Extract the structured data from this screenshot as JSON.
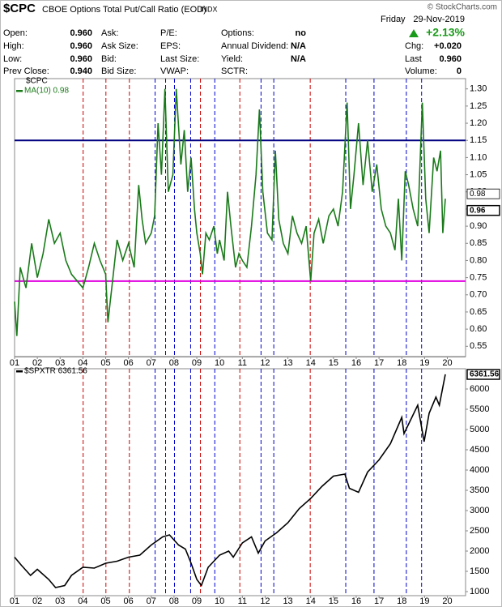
{
  "header": {
    "symbol": "$CPC",
    "name": "CBOE Options Total Put/Call Ratio (EOD)",
    "exchange": "INDX",
    "copyright": "© StockCharts.com",
    "day": "Friday",
    "date": "29-Nov-2019",
    "change_pct": "+2.13%",
    "columns": [
      [
        {
          "label": "Open:",
          "value": "0.960"
        },
        {
          "label": "High:",
          "value": "0.960"
        },
        {
          "label": "Low:",
          "value": "0.960"
        },
        {
          "label": "Prev Close:",
          "value": "0.940"
        }
      ],
      [
        {
          "label": "Ask:"
        },
        {
          "label": "Ask Size:"
        },
        {
          "label": "Bid:"
        },
        {
          "label": "Bid Size:"
        }
      ],
      [
        {
          "label": "P/E:"
        },
        {
          "label": "EPS:"
        },
        {
          "label": "Last Size:"
        },
        {
          "label": "VWAP:"
        }
      ],
      [
        {
          "label": "Options:",
          "value": "no"
        },
        {
          "label": "Annual Dividend:",
          "value": "N/A"
        },
        {
          "label": "Yield:",
          "value": "N/A"
        },
        {
          "label": "SCTR:"
        }
      ],
      [
        {
          "label": "Chg:",
          "value": "+0.020"
        },
        {
          "label": "Last",
          "value": "0.960"
        },
        {
          "label": "Volume:",
          "value": "0"
        }
      ]
    ]
  },
  "chart_data": [
    {
      "type": "line",
      "legend_title": "$CPC",
      "xlim": [
        2001,
        2020.8
      ],
      "ylim": [
        0.52,
        1.33
      ],
      "xticks": [
        {
          "value": 2001,
          "label": "01"
        },
        {
          "value": 2002,
          "label": "02"
        },
        {
          "value": 2003,
          "label": "03"
        },
        {
          "value": 2004,
          "label": "04"
        },
        {
          "value": 2005,
          "label": "05"
        },
        {
          "value": 2006,
          "label": "06"
        },
        {
          "value": 2007,
          "label": "07"
        },
        {
          "value": 2008,
          "label": "08"
        },
        {
          "value": 2009,
          "label": "09"
        },
        {
          "value": 2010,
          "label": "10"
        },
        {
          "value": 2011,
          "label": "11"
        },
        {
          "value": 2012,
          "label": "12"
        },
        {
          "value": 2013,
          "label": "13"
        },
        {
          "value": 2014,
          "label": "14"
        },
        {
          "value": 2015,
          "label": "15"
        },
        {
          "value": 2016,
          "label": "16"
        },
        {
          "value": 2017,
          "label": "17"
        },
        {
          "value": 2018,
          "label": "18"
        },
        {
          "value": 2019,
          "label": "19"
        },
        {
          "value": 2020,
          "label": "20"
        }
      ],
      "yticks": [
        0.55,
        {
          "value": 0.6,
          "label": "0.60"
        },
        0.65,
        {
          "value": 0.7,
          "label": "0.70"
        },
        0.75,
        {
          "value": 0.8,
          "label": "0.80"
        },
        0.85,
        {
          "value": 0.9,
          "label": "0.90"
        },
        0.95,
        {
          "value": 1.0,
          "label": "1.00"
        },
        1.05,
        {
          "value": 1.1,
          "label": "1.10"
        },
        1.15,
        {
          "value": 1.2,
          "label": "1.20"
        },
        1.25,
        {
          "value": 1.3,
          "label": "1.30"
        }
      ],
      "hlines": [
        {
          "value": 1.15,
          "color": "#000080"
        },
        {
          "value": 0.74,
          "color": "#e000e0"
        }
      ],
      "vlines": [
        {
          "color": "#cc0000",
          "x": [
            2004.01,
            2005.01,
            2006.04,
            2009.16,
            2010.89,
            2013.98
          ]
        },
        {
          "color": "#0000cc",
          "x": [
            2007.17,
            2007.63,
            2008.02,
            2008.73,
            2009.79,
            2011.82,
            2012.38,
            2015.54,
            2016.78,
            2018.2,
            2018.87
          ]
        }
      ],
      "last_labels": [
        0.98,
        0.96
      ],
      "series": [
        {
          "name": "MA(10) 0.98",
          "color": "#1a7a1a",
          "x": [
            2001.0,
            2001.1,
            2001.25,
            2001.5,
            2001.75,
            2002.0,
            2002.25,
            2002.5,
            2002.75,
            2003.0,
            2003.25,
            2003.5,
            2003.75,
            2004.0,
            2004.25,
            2004.5,
            2004.75,
            2005.0,
            2005.1,
            2005.3,
            2005.5,
            2005.75,
            2006.0,
            2006.25,
            2006.45,
            2006.6,
            2006.75,
            2007.0,
            2007.15,
            2007.3,
            2007.45,
            2007.6,
            2007.75,
            2007.95,
            2008.1,
            2008.3,
            2008.45,
            2008.6,
            2008.75,
            2008.9,
            2009.0,
            2009.15,
            2009.25,
            2009.4,
            2009.55,
            2009.75,
            2009.9,
            2010.0,
            2010.2,
            2010.35,
            2010.5,
            2010.7,
            2010.85,
            2011.0,
            2011.2,
            2011.4,
            2011.6,
            2011.75,
            2011.9,
            2012.1,
            2012.3,
            2012.45,
            2012.6,
            2012.8,
            2013.0,
            2013.2,
            2013.4,
            2013.6,
            2013.8,
            2014.0,
            2014.15,
            2014.35,
            2014.55,
            2014.8,
            2015.0,
            2015.2,
            2015.4,
            2015.6,
            2015.75,
            2015.9,
            2016.1,
            2016.3,
            2016.5,
            2016.7,
            2016.9,
            2017.1,
            2017.3,
            2017.5,
            2017.7,
            2017.85,
            2018.0,
            2018.15,
            2018.3,
            2018.5,
            2018.7,
            2018.9,
            2019.05,
            2019.2,
            2019.4,
            2019.55,
            2019.7,
            2019.8,
            2019.91
          ],
          "values": [
            0.68,
            0.58,
            0.78,
            0.72,
            0.85,
            0.75,
            0.82,
            0.92,
            0.85,
            0.88,
            0.8,
            0.76,
            0.74,
            0.72,
            0.78,
            0.85,
            0.8,
            0.76,
            0.62,
            0.74,
            0.86,
            0.8,
            0.85,
            0.78,
            1.02,
            0.92,
            0.85,
            0.88,
            0.93,
            1.2,
            1.05,
            1.3,
            1.0,
            1.05,
            1.3,
            1.08,
            1.18,
            1.0,
            1.1,
            0.95,
            0.88,
            0.82,
            0.76,
            0.88,
            0.86,
            0.9,
            0.82,
            0.86,
            0.8,
            1.0,
            0.9,
            0.78,
            0.82,
            0.8,
            0.78,
            0.9,
            1.05,
            1.24,
            1.0,
            0.88,
            0.86,
            1.12,
            0.92,
            0.85,
            0.82,
            0.93,
            0.88,
            0.85,
            0.9,
            0.74,
            0.88,
            0.92,
            0.85,
            0.93,
            0.95,
            0.9,
            1.0,
            1.26,
            0.95,
            1.05,
            1.2,
            1.02,
            1.15,
            1.0,
            1.08,
            0.95,
            0.9,
            0.88,
            0.83,
            0.98,
            0.8,
            1.06,
            1.02,
            0.95,
            0.9,
            1.26,
            0.98,
            0.88,
            1.1,
            1.06,
            1.12,
            0.88,
            0.98
          ]
        }
      ]
    },
    {
      "type": "line",
      "xlim": [
        2001,
        2020.8
      ],
      "ylim": [
        900,
        6500
      ],
      "xticks": [
        {
          "value": 2001,
          "label": "01"
        },
        {
          "value": 2002,
          "label": "02"
        },
        {
          "value": 2003,
          "label": "03"
        },
        {
          "value": 2004,
          "label": "04"
        },
        {
          "value": 2005,
          "label": "05"
        },
        {
          "value": 2006,
          "label": "06"
        },
        {
          "value": 2007,
          "label": "07"
        },
        {
          "value": 2008,
          "label": "08"
        },
        {
          "value": 2009,
          "label": "09"
        },
        {
          "value": 2010,
          "label": "10"
        },
        {
          "value": 2011,
          "label": "11"
        },
        {
          "value": 2012,
          "label": "12"
        },
        {
          "value": 2013,
          "label": "13"
        },
        {
          "value": 2014,
          "label": "14"
        },
        {
          "value": 2015,
          "label": "15"
        },
        {
          "value": 2016,
          "label": "16"
        },
        {
          "value": 2017,
          "label": "17"
        },
        {
          "value": 2018,
          "label": "18"
        },
        {
          "value": 2019,
          "label": "19"
        },
        {
          "value": 2020,
          "label": "20"
        }
      ],
      "yticks": [
        1000,
        1500,
        2000,
        2500,
        3000,
        3500,
        4000,
        4500,
        5000,
        5500,
        6000
      ],
      "vlines": [
        {
          "color": "#cc0000",
          "x": [
            2004.01,
            2005.01,
            2006.04,
            2009.16,
            2010.89,
            2013.98
          ]
        },
        {
          "color": "#0000cc",
          "x": [
            2007.17,
            2007.63,
            2008.02,
            2008.73,
            2009.79,
            2011.82,
            2012.38,
            2015.54,
            2016.78,
            2018.2,
            2018.87
          ]
        }
      ],
      "last_labels": [
        6361.56
      ],
      "series": [
        {
          "name": "$SPXTR 6361.56",
          "color": "#000000",
          "x": [
            2001.0,
            2001.3,
            2001.7,
            2002.0,
            2002.5,
            2002.8,
            2003.2,
            2003.5,
            2004.0,
            2004.5,
            2005.0,
            2005.5,
            2006.0,
            2006.5,
            2007.0,
            2007.5,
            2007.8,
            2008.2,
            2008.5,
            2008.75,
            2009.0,
            2009.2,
            2009.5,
            2010.0,
            2010.4,
            2010.6,
            2011.0,
            2011.4,
            2011.7,
            2012.0,
            2012.5,
            2013.0,
            2013.5,
            2014.0,
            2014.5,
            2015.0,
            2015.5,
            2015.7,
            2016.1,
            2016.5,
            2017.0,
            2017.5,
            2018.0,
            2018.1,
            2018.7,
            2018.98,
            2019.2,
            2019.5,
            2019.65,
            2019.91
          ],
          "values": [
            1850,
            1650,
            1400,
            1550,
            1300,
            1100,
            1150,
            1400,
            1600,
            1580,
            1700,
            1750,
            1850,
            1900,
            2150,
            2350,
            2400,
            2150,
            2050,
            1700,
            1300,
            1150,
            1600,
            1900,
            2000,
            1850,
            2200,
            2350,
            1950,
            2250,
            2450,
            2700,
            3050,
            3300,
            3600,
            3850,
            3900,
            3550,
            3450,
            3950,
            4250,
            4650,
            5300,
            4900,
            5600,
            4700,
            5400,
            5800,
            5600,
            6361.56
          ]
        }
      ]
    }
  ]
}
